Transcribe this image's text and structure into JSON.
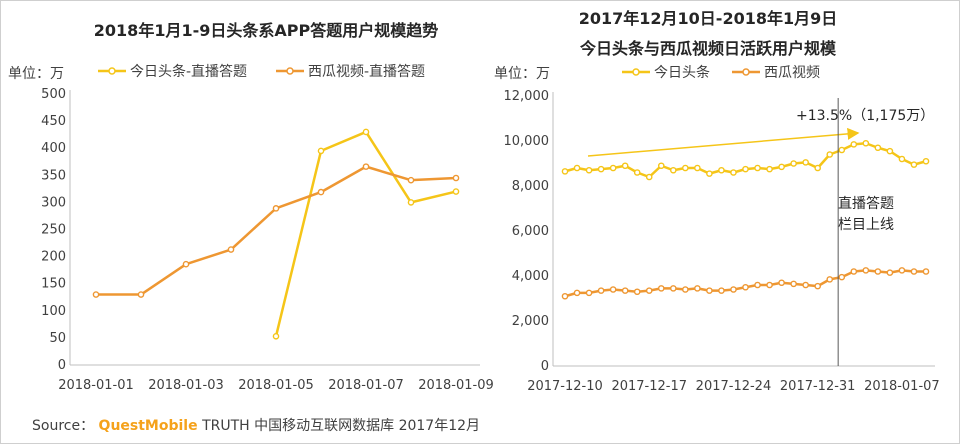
{
  "colors": {
    "toutiao": "#f5c518",
    "xigua": "#ee9732",
    "vline": "#595959",
    "brand": "#f5a21b"
  },
  "source": {
    "label": "Source：",
    "brand": "QuestMobile",
    "rest": "TRUTH 中国移动互联网数据库 2017年12月"
  },
  "chart_data": [
    {
      "type": "line",
      "title": "2018年1月1-9日头条系APP答题用户规模趋势",
      "unit_label": "单位：万",
      "ylim": [
        0,
        500
      ],
      "yticks": [
        0,
        50,
        100,
        150,
        200,
        250,
        300,
        350,
        400,
        450,
        500
      ],
      "ytick_labels": [
        "0",
        "50",
        "100",
        "150",
        "200",
        "250",
        "300",
        "350",
        "400",
        "450",
        "500"
      ],
      "x": [
        "2018-01-01",
        "2018-01-02",
        "2018-01-03",
        "2018-01-04",
        "2018-01-05",
        "2018-01-06",
        "2018-01-07",
        "2018-01-08",
        "2018-01-09"
      ],
      "xtick_labels": [
        "2018-01-01",
        "2018-01-03",
        "2018-01-05",
        "2018-01-07",
        "2018-01-09"
      ],
      "legend_position": "top",
      "series": [
        {
          "name": "今日头条-直播答题",
          "color_key": "toutiao",
          "values": [
            null,
            null,
            null,
            null,
            53,
            395,
            430,
            300,
            320
          ]
        },
        {
          "name": "西瓜视频-直播答题",
          "color_key": "xigua",
          "values": [
            130,
            130,
            186,
            213,
            289,
            319,
            366,
            341,
            345
          ]
        }
      ]
    },
    {
      "type": "line",
      "title_line1": "2017年12月10日-2018年1月9日",
      "title_line2": "今日头条与西瓜视频日活跃用户规模",
      "unit_label": "单位：万",
      "ylim": [
        0,
        12000
      ],
      "yticks": [
        0,
        2000,
        4000,
        6000,
        8000,
        10000,
        12000
      ],
      "ytick_labels": [
        "0",
        "2,000",
        "4,000",
        "6,000",
        "8,000",
        "10,000",
        "12,000"
      ],
      "x_start": "2017-12-10",
      "x": [
        "2017-12-10",
        "2017-12-11",
        "2017-12-12",
        "2017-12-13",
        "2017-12-14",
        "2017-12-15",
        "2017-12-16",
        "2017-12-17",
        "2017-12-18",
        "2017-12-19",
        "2017-12-20",
        "2017-12-21",
        "2017-12-22",
        "2017-12-23",
        "2017-12-24",
        "2017-12-25",
        "2017-12-26",
        "2017-12-27",
        "2017-12-28",
        "2017-12-29",
        "2017-12-30",
        "2017-12-31",
        "2018-01-01",
        "2018-01-02",
        "2018-01-03",
        "2018-01-04",
        "2018-01-05",
        "2018-01-06",
        "2018-01-07",
        "2018-01-08",
        "2018-01-09"
      ],
      "xtick_labels": [
        "2017-12-10",
        "2017-12-17",
        "2017-12-24",
        "2017-12-31",
        "2018-01-07"
      ],
      "xtick_dates": [
        "2017-12-10",
        "2017-12-17",
        "2017-12-24",
        "2017-12-31",
        "2018-01-07"
      ],
      "legend_position": "top",
      "series": [
        {
          "name": "今日头条",
          "color_key": "toutiao",
          "values": [
            8650,
            8800,
            8700,
            8750,
            8800,
            8900,
            8600,
            8400,
            8900,
            8700,
            8800,
            8800,
            8550,
            8700,
            8600,
            8750,
            8800,
            8750,
            8850,
            9000,
            9050,
            8800,
            9400,
            9600,
            9850,
            9900,
            9700,
            9550,
            9200,
            8950,
            9100
          ]
        },
        {
          "name": "西瓜视频",
          "color_key": "xigua",
          "values": [
            3100,
            3250,
            3250,
            3350,
            3400,
            3350,
            3300,
            3350,
            3450,
            3450,
            3400,
            3450,
            3350,
            3350,
            3400,
            3500,
            3600,
            3600,
            3700,
            3650,
            3600,
            3550,
            3850,
            3950,
            4200,
            4250,
            4200,
            4150,
            4250,
            4200,
            4200
          ]
        }
      ],
      "annotations": {
        "growth": "+13.5%（1,175万）",
        "event_line1": "直播答题",
        "event_line2": "栏目上线",
        "event_date": "2018-01-02"
      }
    }
  ]
}
